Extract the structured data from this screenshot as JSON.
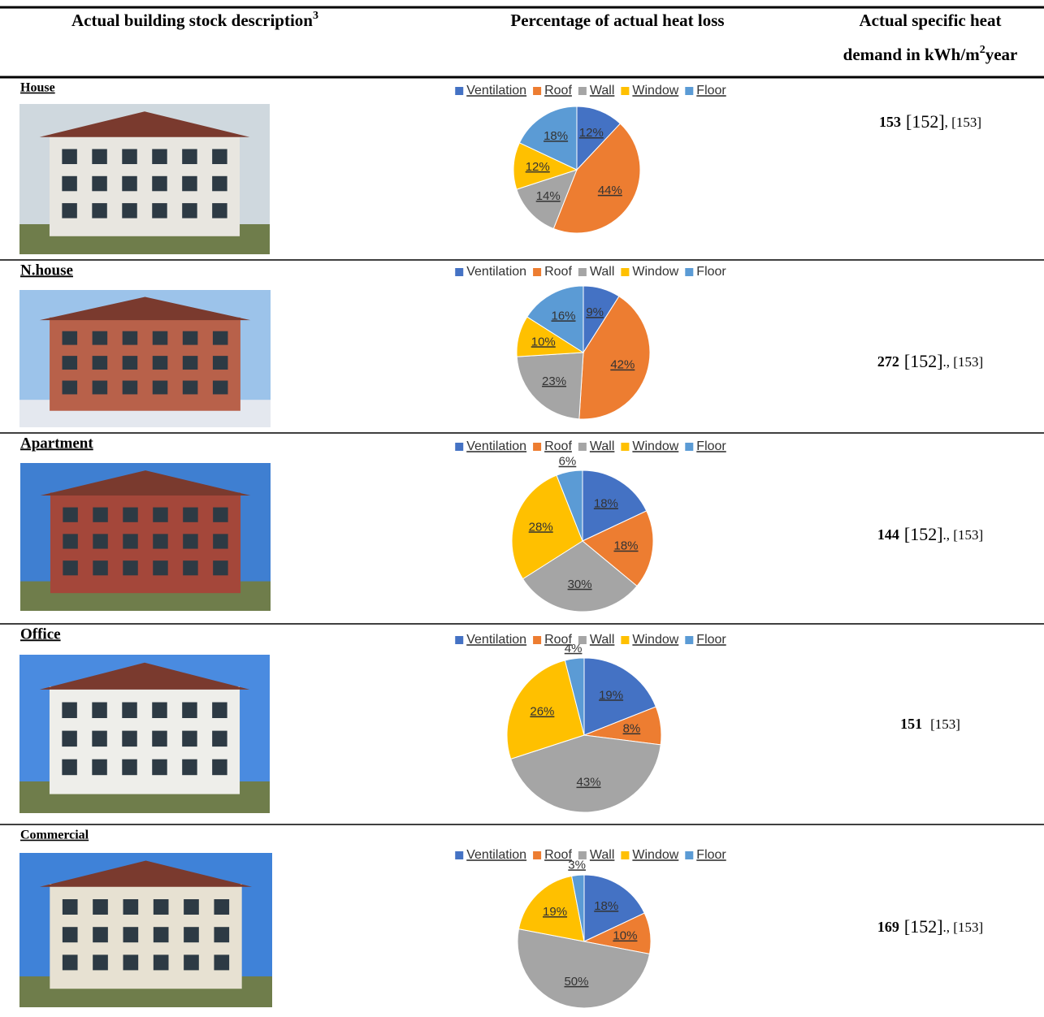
{
  "header": {
    "col1": "Actual building stock description",
    "col1_sup": "3",
    "col2": "Percentage of actual heat loss",
    "col3_line1": "Actual specific heat",
    "col3_line2": "demand in kWh/m",
    "col3_sup": "2",
    "col3_end": "year"
  },
  "table": {
    "rows": [
      {
        "label": "House",
        "chart": {
          "type": "pie",
          "categories": [
            "Ventilation",
            "Roof",
            "Wall",
            "Window",
            "Floor"
          ],
          "colors": [
            "#4472c4",
            "#ed7d31",
            "#a5a5a5",
            "#ffc000",
            "#5b9bd5"
          ],
          "values": [
            12,
            44,
            14,
            12,
            18
          ],
          "value_labels": [
            "12%",
            "44%",
            "14%",
            "12%",
            "18%"
          ]
        },
        "demand": 153,
        "citation_main": "[152]",
        "citation_rest": ", [153]"
      },
      {
        "label": "N.house",
        "chart": {
          "type": "pie",
          "categories": [
            "Ventilation",
            "Roof",
            "Wall",
            "Window",
            "Floor"
          ],
          "colors": [
            "#4472c4",
            "#ed7d31",
            "#a5a5a5",
            "#ffc000",
            "#5b9bd5"
          ],
          "values": [
            9,
            42,
            23,
            10,
            16
          ],
          "value_labels": [
            "9%",
            "42%",
            "23%",
            "10%",
            "16%"
          ]
        },
        "demand": 272,
        "citation_main": "[152]",
        "citation_rest": "., [153]"
      },
      {
        "label": "Apartment",
        "chart": {
          "type": "pie",
          "categories": [
            "Ventilation",
            "Roof",
            "Wall",
            "Window",
            "Floor"
          ],
          "colors": [
            "#4472c4",
            "#ed7d31",
            "#a5a5a5",
            "#ffc000",
            "#5b9bd5"
          ],
          "values": [
            18,
            18,
            30,
            28,
            6
          ],
          "value_labels": [
            "18%",
            "18%",
            "30%",
            "28%",
            "6%"
          ]
        },
        "demand": 144,
        "citation_main": "[152]",
        "citation_rest": "., [153]"
      },
      {
        "label": "Office",
        "chart": {
          "type": "pie",
          "categories": [
            "Ventilation",
            "Roof",
            "Wall",
            "Window",
            "Floor"
          ],
          "colors": [
            "#4472c4",
            "#ed7d31",
            "#a5a5a5",
            "#ffc000",
            "#5b9bd5"
          ],
          "values": [
            19,
            8,
            43,
            26,
            4
          ],
          "value_labels": [
            "19%",
            "8%",
            "43%",
            "26%",
            "4%"
          ]
        },
        "demand": 151,
        "citation_rest": "[153]"
      },
      {
        "label": "Commercial",
        "chart": {
          "type": "pie",
          "categories": [
            "Ventilation",
            "Roof",
            "Wall",
            "Window",
            "Floor"
          ],
          "colors": [
            "#4472c4",
            "#ed7d31",
            "#a5a5a5",
            "#ffc000",
            "#5b9bd5"
          ],
          "values": [
            18,
            10,
            50,
            19,
            3
          ],
          "value_labels": [
            "18%",
            "10%",
            "50%",
            "19%",
            "3%"
          ]
        },
        "demand": 169,
        "citation_main": "[152]",
        "citation_rest": "., [153]"
      }
    ]
  }
}
